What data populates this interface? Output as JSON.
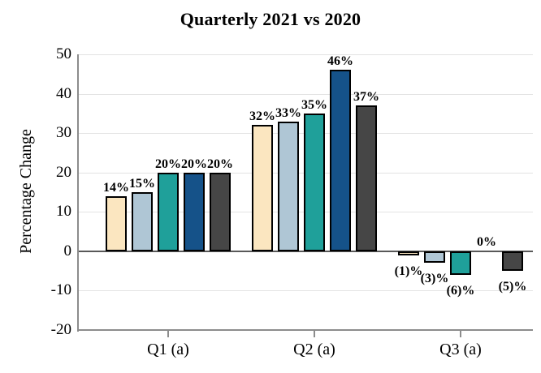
{
  "chart_data": {
    "type": "bar",
    "title": "Quarterly 2021 vs 2020",
    "xlabel": "",
    "ylabel": "Percentage Change",
    "categories": [
      "Q1 (a)",
      "Q2 (a)",
      "Q3 (a)"
    ],
    "series": [
      {
        "color": "#FBE6C0",
        "values": [
          14,
          32,
          -1
        ],
        "labels": [
          "14%",
          "32%",
          "(1)%"
        ]
      },
      {
        "color": "#AFC6D5",
        "values": [
          15,
          33,
          -3
        ],
        "labels": [
          "15%",
          "33%",
          "(3)%"
        ]
      },
      {
        "color": "#1FA09A",
        "values": [
          20,
          35,
          -6
        ],
        "labels": [
          "20%",
          "35%",
          "(6)%"
        ]
      },
      {
        "color": "#155289",
        "values": [
          20,
          46,
          0
        ],
        "labels": [
          "20%",
          "46%",
          "0%"
        ]
      },
      {
        "color": "#464646",
        "values": [
          20,
          37,
          -5
        ],
        "labels": [
          "20%",
          "37%",
          "(5)%"
        ]
      }
    ],
    "ylim": [
      -20,
      50
    ],
    "yticks": [
      50,
      40,
      30,
      20,
      10,
      0,
      -10,
      -20
    ],
    "ytick_labels": [
      "50",
      "40",
      "30",
      "20",
      "10",
      "0",
      "-10",
      "-20"
    ],
    "grid": true,
    "legend": false,
    "colors": {
      "gridline": "#E3E3E3",
      "zero_line": "#595959",
      "axis_line": "#8C8C8C",
      "bar_border": "#000000",
      "text": "#000000",
      "background": "#FFFFFF"
    }
  }
}
